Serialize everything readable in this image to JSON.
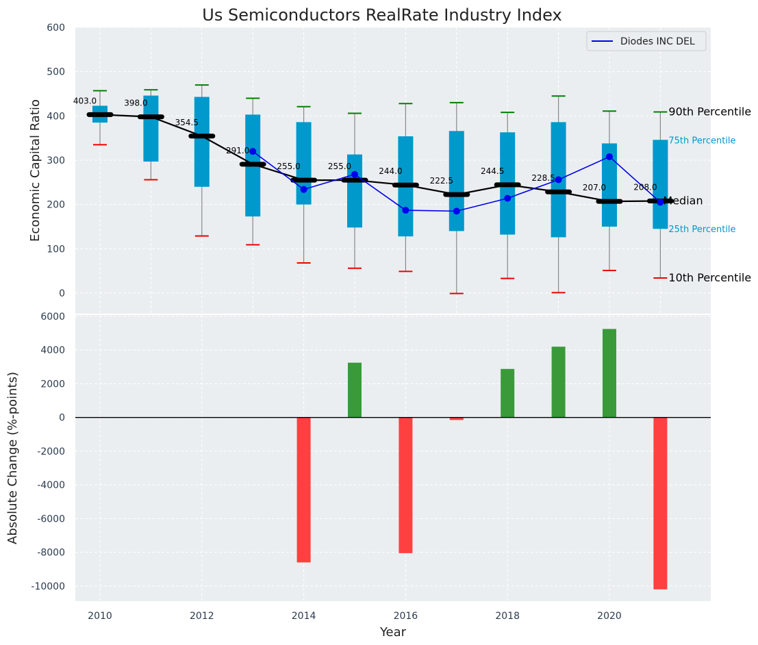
{
  "chart_data": [
    {
      "type": "box",
      "title": "Us Semiconductors RealRate Industry Index",
      "xlabel": "",
      "ylabel": "Economic Capital Ratio",
      "ylim": [
        0,
        600
      ],
      "yticks": [
        0,
        100,
        200,
        300,
        400,
        500,
        600
      ],
      "grid": true,
      "x": [
        2010,
        2011,
        2012,
        2013,
        2014,
        2015,
        2016,
        2017,
        2018,
        2019,
        2020,
        2021
      ],
      "median": [
        403.0,
        398.0,
        354.5,
        291.0,
        255.0,
        255.0,
        244.0,
        222.5,
        244.5,
        228.5,
        207.0,
        208.0
      ],
      "median_labels": [
        "403.0",
        "398.0",
        "354.5",
        "291.0",
        "255.0",
        "255.0",
        "244.0",
        "222.5",
        "244.5",
        "228.5",
        "207.0",
        "208.0"
      ],
      "p25": [
        385,
        297,
        240,
        173,
        200,
        148,
        128,
        140,
        132,
        126,
        150,
        145
      ],
      "p75": [
        423,
        446,
        443,
        403,
        386,
        313,
        354,
        366,
        363,
        386,
        338,
        346
      ],
      "p10": [
        335,
        256,
        129,
        109,
        68,
        56,
        49,
        -1,
        33,
        1,
        51,
        34
      ],
      "p90": [
        457,
        459,
        470,
        440,
        421,
        406,
        428,
        430,
        408,
        445,
        411,
        409
      ],
      "series": [
        {
          "name": "Diodes INC DEL",
          "color": "#0000ee",
          "values": [
            null,
            null,
            null,
            320,
            234,
            268,
            187,
            185,
            214,
            256,
            308,
            205
          ]
        }
      ],
      "percentile_labels": {
        "p90": "90th Percentile",
        "p75": "75th Percentile",
        "median": "Median",
        "p25": "25th Percentile",
        "p10": "10th Percentile"
      },
      "legend": {
        "position": "top-right",
        "entry": "Diodes INC DEL"
      }
    },
    {
      "type": "bar",
      "xlabel": "Year",
      "ylabel": "Absolute Change (%-points)",
      "ylim": [
        -10900,
        6000
      ],
      "yticks": [
        -10000,
        -8000,
        -6000,
        -4000,
        -2000,
        0,
        2000,
        4000,
        6000
      ],
      "xticks": [
        2010,
        2012,
        2014,
        2016,
        2018,
        2020
      ],
      "grid": true,
      "x": [
        2014,
        2015,
        2016,
        2017,
        2018,
        2019,
        2020,
        2021
      ],
      "values": [
        -8600,
        3250,
        -8050,
        -150,
        2880,
        4200,
        5250,
        -10200
      ],
      "colors": {
        "positive": "#3a9a3a",
        "negative": "#ff4040"
      }
    }
  ],
  "colors": {
    "background": "#eaeef0",
    "box": "#0099cc",
    "median": "#000000",
    "p90cap": "#008000",
    "p10cap": "#ee0000",
    "whisker": "#888888",
    "series": "#0000ee",
    "grid": "#ffffff"
  }
}
